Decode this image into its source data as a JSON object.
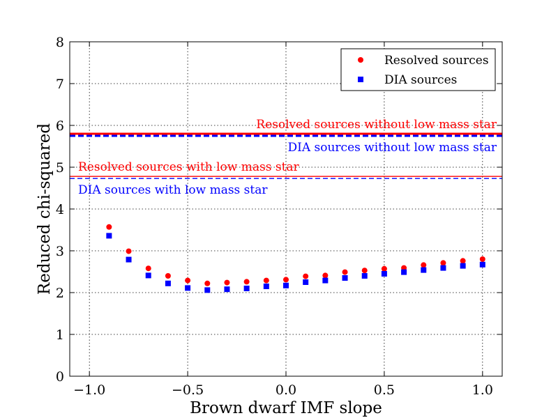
{
  "chart_data": {
    "type": "scatter",
    "title": "",
    "xlabel": "Brown dwarf IMF slope",
    "ylabel": "Reduced chi-squared",
    "xlim": [
      -1.1,
      1.1
    ],
    "ylim": [
      0,
      8
    ],
    "xticks": [
      -1.0,
      -0.5,
      0.0,
      0.5,
      1.0
    ],
    "xtick_labels": [
      "−1.0",
      "−0.5",
      "0.0",
      "0.5",
      "1.0"
    ],
    "yticks": [
      0,
      1,
      2,
      3,
      4,
      5,
      6,
      7,
      8
    ],
    "ytick_labels": [
      "0",
      "1",
      "2",
      "3",
      "4",
      "5",
      "6",
      "7",
      "8"
    ],
    "grid": true,
    "legend_position": "top-right",
    "x": [
      -0.9,
      -0.8,
      -0.7,
      -0.6,
      -0.5,
      -0.4,
      -0.3,
      -0.2,
      -0.1,
      0.0,
      0.1,
      0.2,
      0.3,
      0.4,
      0.5,
      0.6,
      0.7,
      0.8,
      0.9,
      1.0
    ],
    "series": [
      {
        "name": "Resolved sources",
        "marker": "circle",
        "color": "#ff0000",
        "values": [
          3.57,
          2.99,
          2.58,
          2.4,
          2.29,
          2.22,
          2.24,
          2.26,
          2.29,
          2.31,
          2.39,
          2.41,
          2.49,
          2.53,
          2.57,
          2.59,
          2.66,
          2.71,
          2.76,
          2.8
        ]
      },
      {
        "name": "DIA sources",
        "marker": "square",
        "color": "#0000ff",
        "values": [
          3.36,
          2.79,
          2.41,
          2.22,
          2.11,
          2.06,
          2.08,
          2.1,
          2.15,
          2.17,
          2.25,
          2.29,
          2.35,
          2.4,
          2.45,
          2.49,
          2.54,
          2.59,
          2.64,
          2.67
        ]
      }
    ],
    "reference_lines": [
      {
        "label": "Resolved sources without low mass star",
        "y": 5.8,
        "color": "#ff0000",
        "style": "solid",
        "weight": "thick",
        "label_side": "right",
        "label_pos": "above"
      },
      {
        "label": "DIA sources without low mass star",
        "y": 5.75,
        "color": "#0000ff",
        "style": "dashed",
        "weight": "thick",
        "label_side": "right",
        "label_pos": "below"
      },
      {
        "label": "Resolved sources with low mass star",
        "y": 4.78,
        "color": "#ff0000",
        "style": "solid",
        "weight": "thin",
        "label_side": "left",
        "label_pos": "above"
      },
      {
        "label": "DIA sources with low mass star",
        "y": 4.73,
        "color": "#0000ff",
        "style": "dashed",
        "weight": "thin",
        "label_side": "left",
        "label_pos": "below"
      }
    ]
  }
}
